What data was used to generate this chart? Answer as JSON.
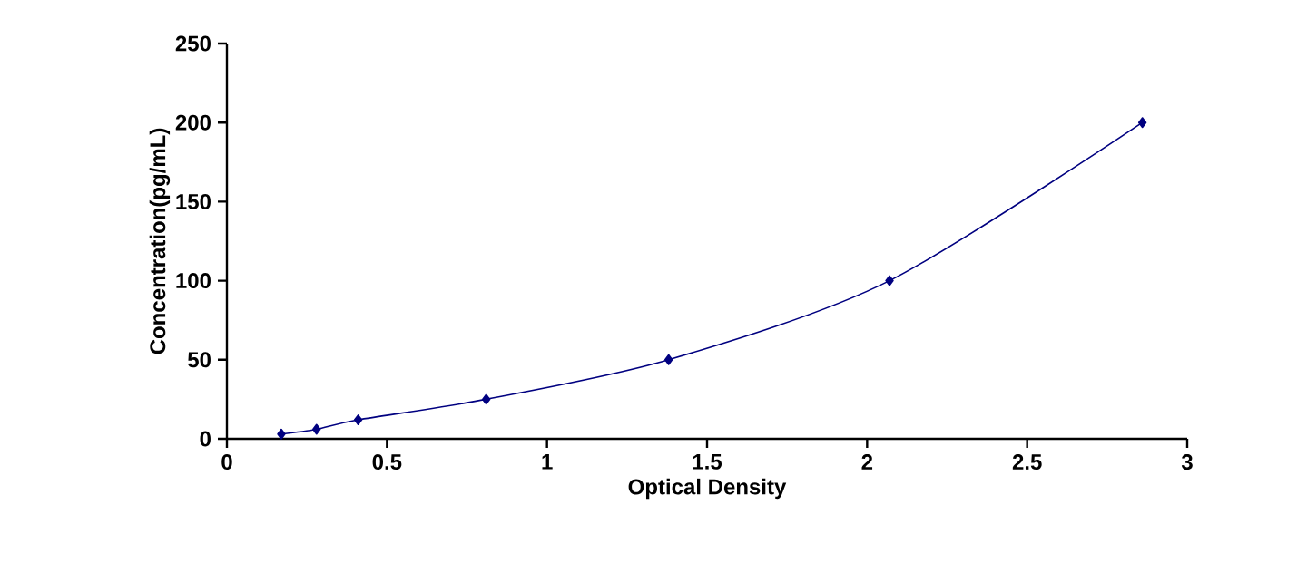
{
  "chart_data": {
    "type": "line",
    "xlabel": "Optical Density",
    "ylabel": "Concentration(pg/mL)",
    "x": [
      0.17,
      0.28,
      0.41,
      0.81,
      1.38,
      2.07,
      2.86
    ],
    "series": [
      {
        "color": "#000080",
        "values": [
          3,
          6,
          12,
          25,
          50,
          100,
          200
        ]
      }
    ],
    "xlim": [
      0,
      3
    ],
    "xticks": [
      0,
      0.5,
      1,
      1.5,
      2,
      2.5,
      3
    ],
    "ylim": [
      0,
      250
    ],
    "yticks": [
      0,
      50,
      100,
      150,
      200,
      250
    ],
    "marker": "diamond",
    "line_style": "solid",
    "grid": false
  }
}
